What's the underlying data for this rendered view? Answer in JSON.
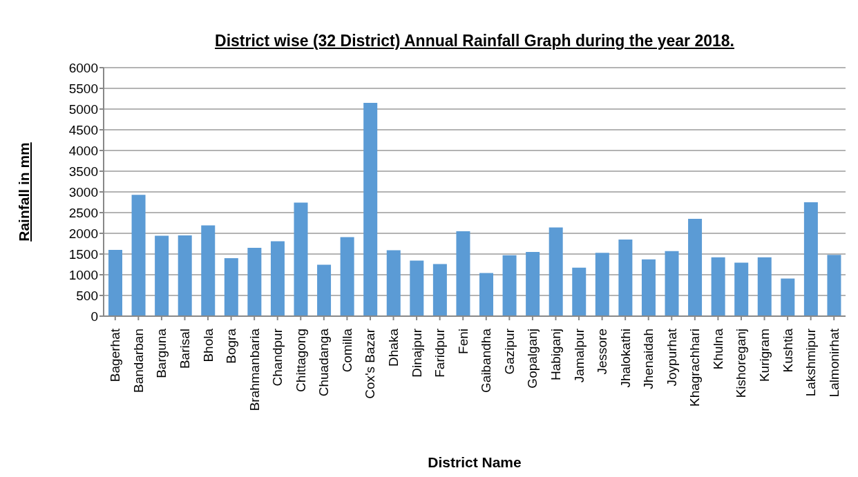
{
  "chart_data": {
    "type": "bar",
    "title": "District wise (32 District) Annual Rainfall Graph during the year 2018.",
    "xlabel": "District Name",
    "ylabel": "Rainfall in mm",
    "categories": [
      "Bagerhat",
      "Bandarban",
      "Barguna",
      "Barisal",
      "Bhola",
      "Bogra",
      "Brahmanbaria",
      "Chandpur",
      "Chittagong",
      "Chuadanga",
      "Comilla",
      "Cox's Bazar",
      "Dhaka",
      "Dinajpur",
      "Faridpur",
      "Feni",
      "Gaibandha",
      "Gazipur",
      "Gopalganj",
      "Habiganj",
      "Jamalpur",
      "Jessore",
      "Jhalokathi",
      "Jhenaidah",
      "Joypurhat",
      "Khagrachhari",
      "Khulna",
      "Kishoreganj",
      "Kurigram",
      "Kushtia",
      "Lakshmipur",
      "Lalmonirhat"
    ],
    "values": [
      1600,
      2930,
      1940,
      1950,
      2190,
      1400,
      1650,
      1810,
      2740,
      1240,
      1910,
      5150,
      1590,
      1340,
      1260,
      2050,
      1040,
      1470,
      1550,
      2140,
      1170,
      1530,
      1850,
      1370,
      1570,
      2350,
      1420,
      1290,
      1420,
      910,
      2750,
      1480
    ],
    "color": "#5b9bd5",
    "ylim": [
      0,
      6000
    ],
    "yticks": [
      0,
      500,
      1000,
      1500,
      2000,
      2500,
      3000,
      3500,
      4000,
      4500,
      5000,
      5500,
      6000
    ],
    "grid": "y"
  }
}
